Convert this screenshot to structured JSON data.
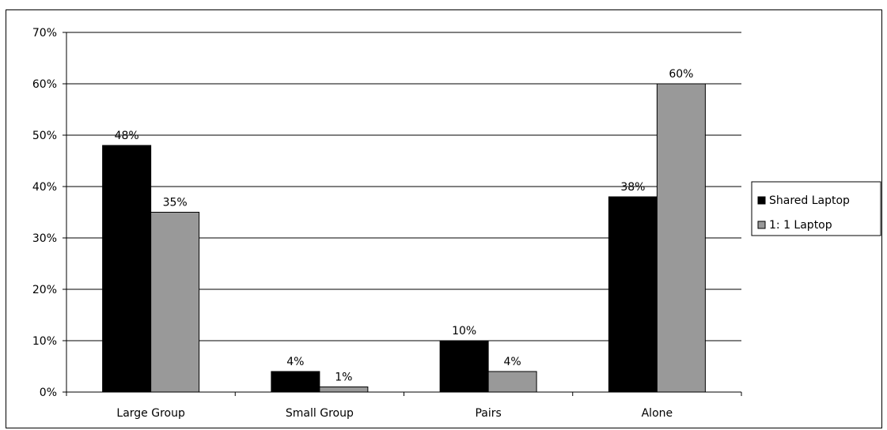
{
  "chart_data": {
    "type": "bar",
    "title": "",
    "xlabel": "",
    "ylabel": "",
    "categories": [
      "Large Group",
      "Small Group",
      "Pairs",
      "Alone"
    ],
    "series": [
      {
        "name": "Shared Laptop",
        "values": [
          48,
          4,
          10,
          38
        ],
        "labels": [
          "48%",
          "4%",
          "10%",
          "38%"
        ],
        "color": "#000000"
      },
      {
        "name": "1:1 Laptop",
        "values": [
          35,
          1,
          4,
          60
        ],
        "labels": [
          "35%",
          "1%",
          "4%",
          "60%"
        ],
        "color": "#999999"
      }
    ],
    "ylim": [
      0,
      70
    ],
    "yticks": [
      0,
      10,
      20,
      30,
      40,
      50,
      60,
      70
    ],
    "ytick_labels": [
      "0%",
      "10%",
      "20%",
      "30%",
      "40%",
      "50%",
      "60%",
      "70%"
    ],
    "grid": true,
    "legend_position": "right",
    "legend": [
      {
        "label": "Shared Laptop",
        "color": "#000000"
      },
      {
        "label": "1: 1 Laptop",
        "color": "#999999"
      }
    ]
  }
}
